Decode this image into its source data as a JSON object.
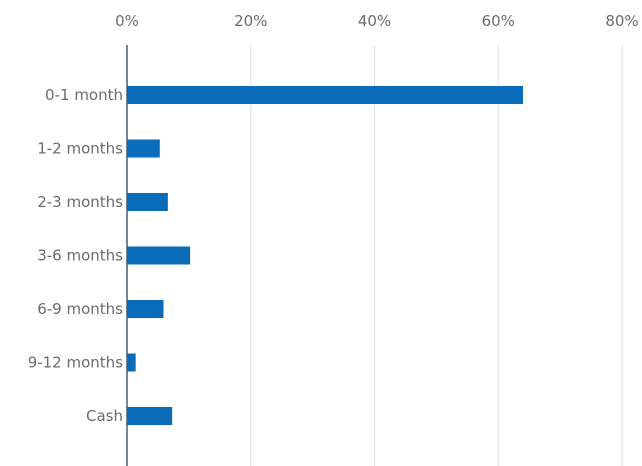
{
  "chart_data": {
    "type": "bar",
    "orientation": "horizontal",
    "title": "",
    "xlabel": "",
    "ylabel": "",
    "categories": [
      "0-1 month",
      "1-2 months",
      "2-3 months",
      "3-6 months",
      "6-9 months",
      "9-12 months",
      "Cash"
    ],
    "values": [
      64,
      5.3,
      6.6,
      10.2,
      5.9,
      1.4,
      7.3
    ],
    "value_unit": "%",
    "xlim": [
      0,
      80
    ],
    "x_ticks": [
      0,
      20,
      40,
      60,
      80
    ],
    "x_tick_labels": [
      "0%",
      "20%",
      "40%",
      "60%",
      "80%"
    ],
    "x_axis_position": "top",
    "grid": true,
    "legend": "none",
    "bar_color": "#0a6bb8",
    "grid_color": "#dde6ee",
    "axis_color": "#4a5a6a",
    "text_color": "#6b6b6b"
  }
}
